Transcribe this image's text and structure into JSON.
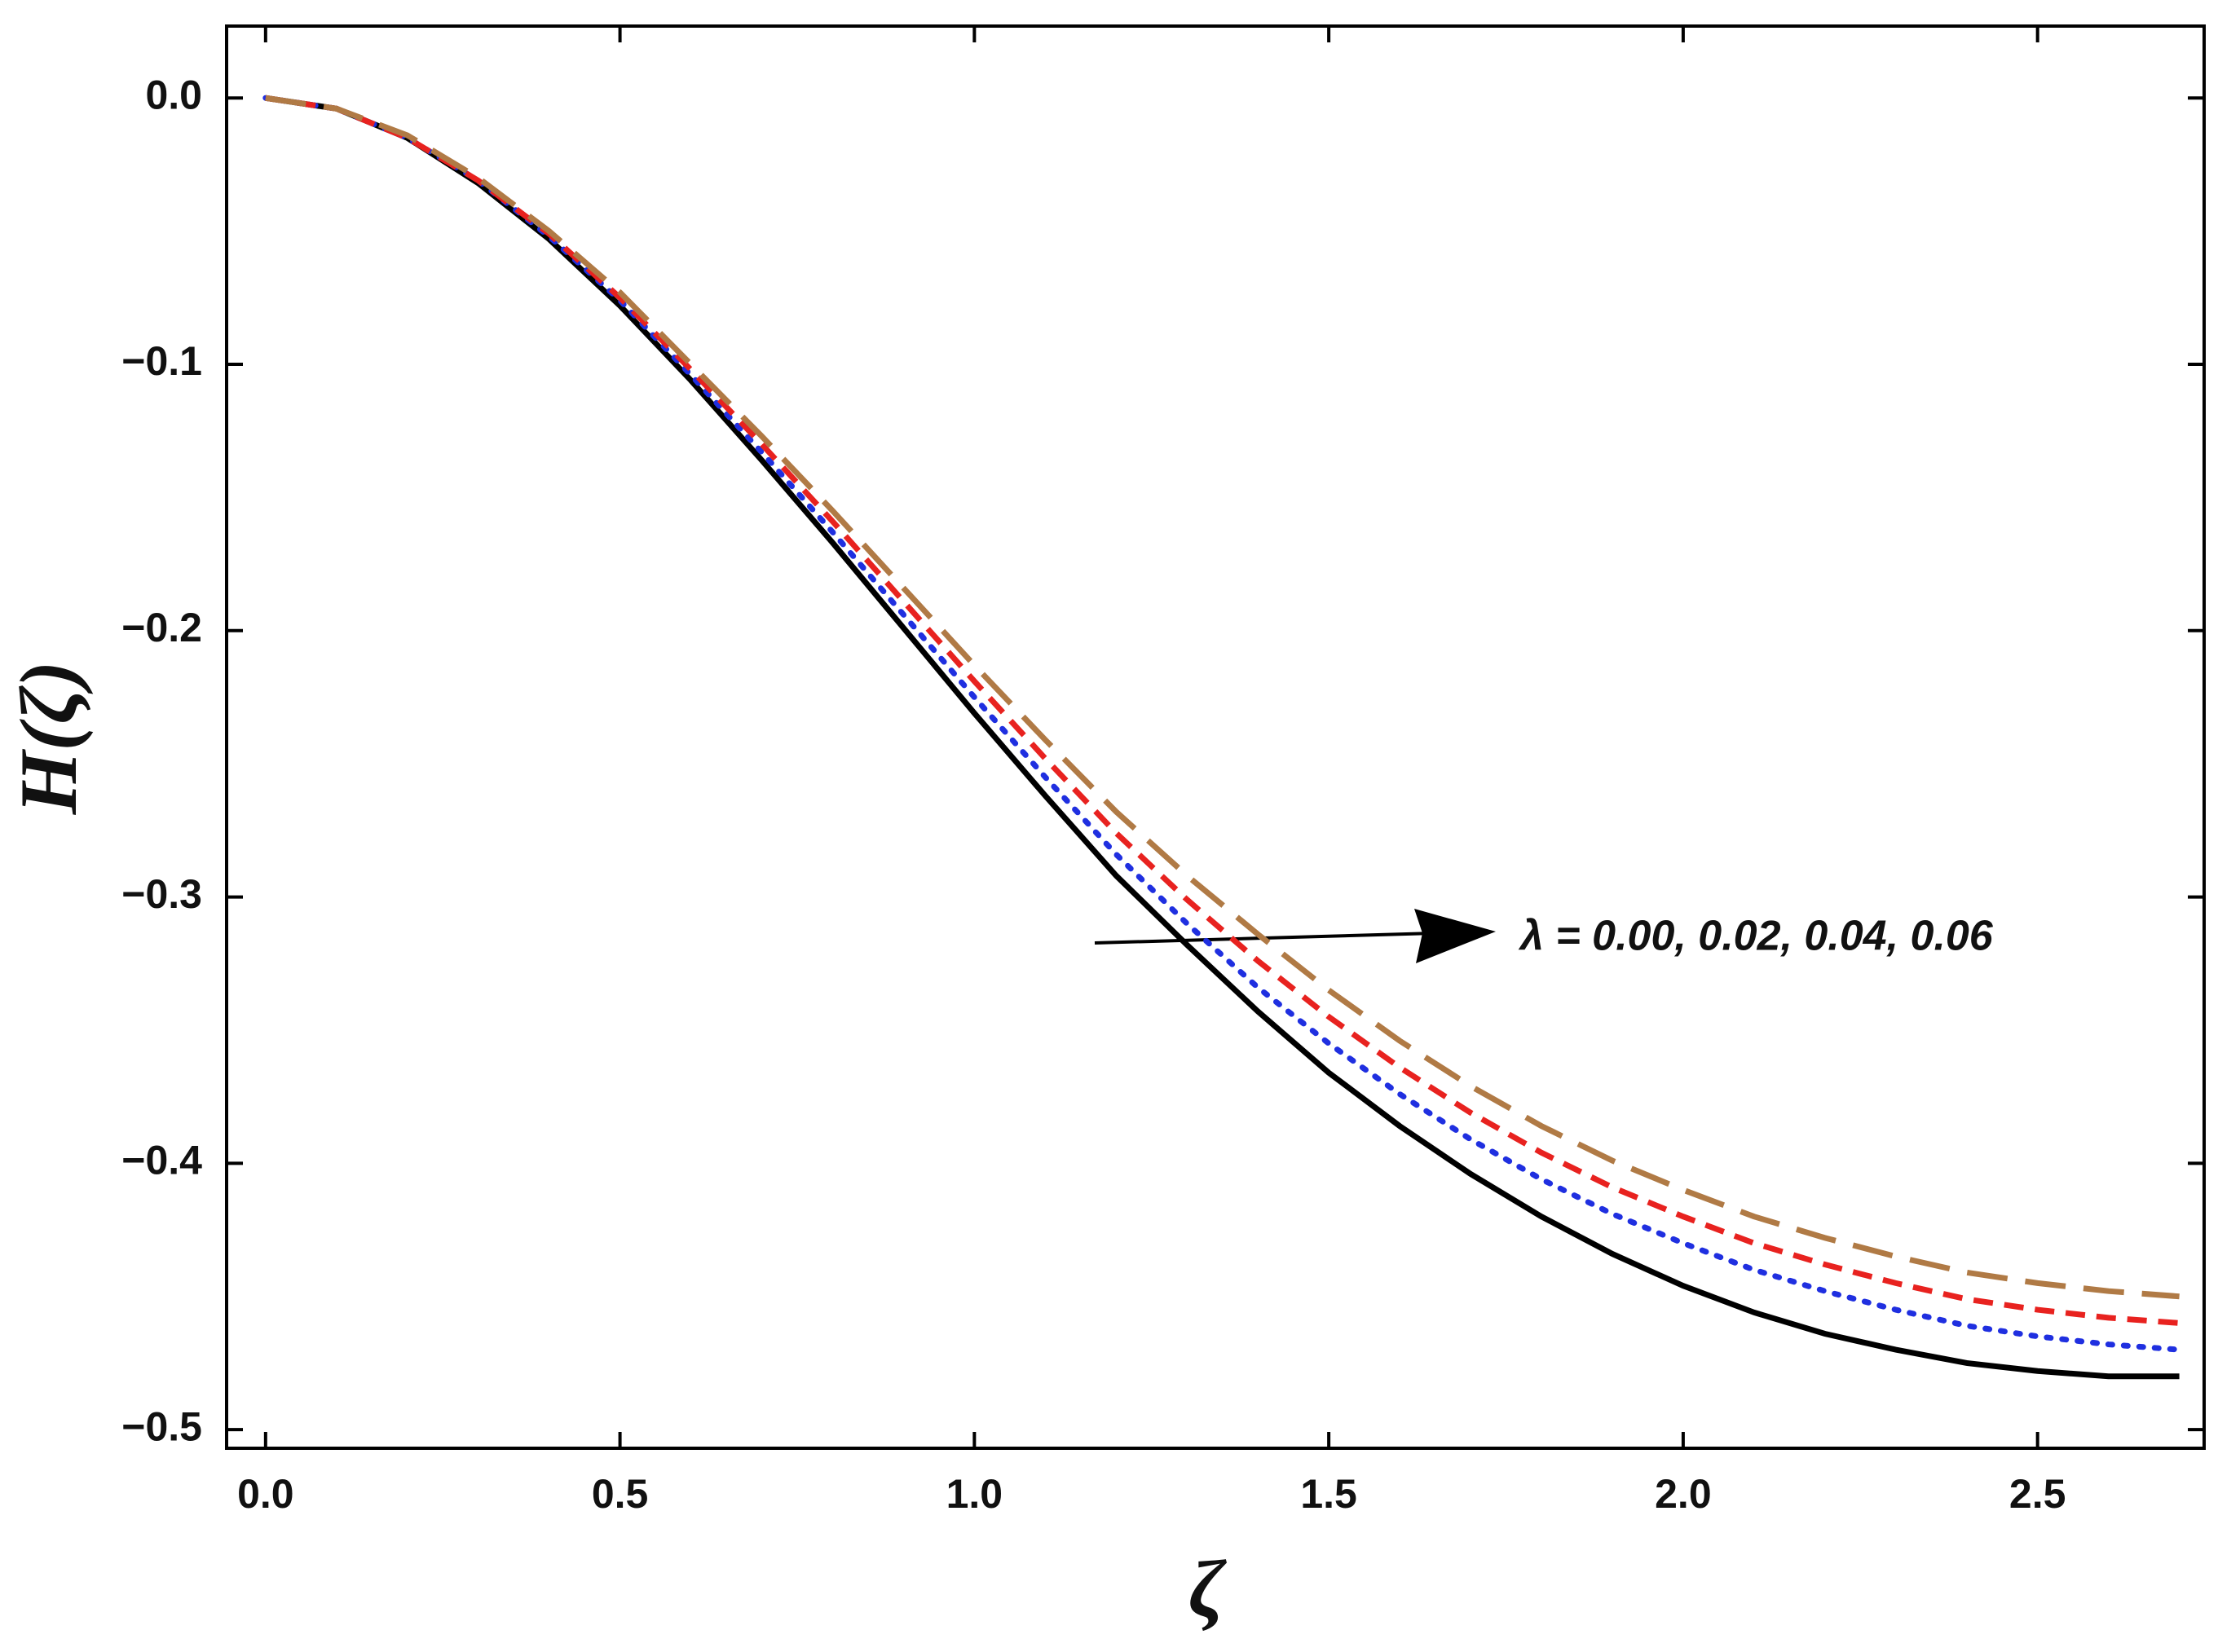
{
  "chart_data": {
    "type": "line",
    "xlabel": "ζ",
    "ylabel": "H(ζ)",
    "annotation": "λ = 0.00, 0.02, 0.04, 0.06",
    "x": [
      0,
      0.1,
      0.2,
      0.3,
      0.4,
      0.5,
      0.6,
      0.7,
      0.8,
      0.9,
      1.0,
      1.1,
      1.2,
      1.3,
      1.4,
      1.5,
      1.6,
      1.7,
      1.8,
      1.9,
      2.0,
      2.1,
      2.2,
      2.3,
      2.4,
      2.5,
      2.6,
      2.7
    ],
    "series": [
      {
        "color": "#000000",
        "style": "solid",
        "values": [
          0,
          -0.004,
          -0.015,
          -0.032,
          -0.053,
          -0.078,
          -0.106,
          -0.136,
          -0.167,
          -0.199,
          -0.231,
          -0.262,
          -0.292,
          -0.318,
          -0.343,
          -0.366,
          -0.386,
          -0.404,
          -0.42,
          -0.434,
          -0.446,
          -0.456,
          -0.464,
          -0.47,
          -0.475,
          -0.478,
          -0.48,
          -0.48
        ]
      },
      {
        "color": "#1f2fe0",
        "style": "dotted",
        "values": [
          0,
          -0.004,
          -0.015,
          -0.031,
          -0.052,
          -0.076,
          -0.104,
          -0.133,
          -0.163,
          -0.194,
          -0.225,
          -0.255,
          -0.284,
          -0.31,
          -0.334,
          -0.355,
          -0.374,
          -0.391,
          -0.406,
          -0.419,
          -0.43,
          -0.44,
          -0.448,
          -0.455,
          -0.461,
          -0.465,
          -0.468,
          -0.47
        ]
      },
      {
        "color": "#e8221f",
        "style": "dashed",
        "values": [
          0,
          -0.004,
          -0.015,
          -0.031,
          -0.051,
          -0.075,
          -0.102,
          -0.13,
          -0.159,
          -0.189,
          -0.219,
          -0.248,
          -0.276,
          -0.301,
          -0.324,
          -0.345,
          -0.364,
          -0.381,
          -0.396,
          -0.409,
          -0.42,
          -0.43,
          -0.438,
          -0.445,
          -0.451,
          -0.455,
          -0.458,
          -0.46
        ]
      },
      {
        "color": "#b07a45",
        "style": "longdash",
        "values": [
          0,
          -0.004,
          -0.014,
          -0.03,
          -0.05,
          -0.073,
          -0.1,
          -0.127,
          -0.155,
          -0.184,
          -0.213,
          -0.241,
          -0.268,
          -0.292,
          -0.314,
          -0.335,
          -0.354,
          -0.371,
          -0.386,
          -0.399,
          -0.41,
          -0.42,
          -0.428,
          -0.435,
          -0.441,
          -0.445,
          -0.448,
          -0.45
        ]
      }
    ],
    "xlim": [
      -0.055,
      2.735
    ],
    "ylim": [
      -0.507,
      0.027
    ],
    "xticks": [
      {
        "value": 0,
        "label": "0.0"
      },
      0.5,
      {
        "value": 1,
        "label": "1.0"
      },
      1.5,
      {
        "value": 2,
        "label": "2.0"
      },
      2.5
    ],
    "yticks": [
      {
        "value": 0,
        "label": "0.0"
      },
      {
        "value": -0.1,
        "label": "−0.1"
      },
      {
        "value": -0.2,
        "label": "−0.2"
      },
      {
        "value": -0.3,
        "label": "−0.3"
      },
      {
        "value": -0.4,
        "label": "−0.4"
      },
      {
        "value": -0.5,
        "label": "−0.5"
      }
    ],
    "grid": false
  }
}
